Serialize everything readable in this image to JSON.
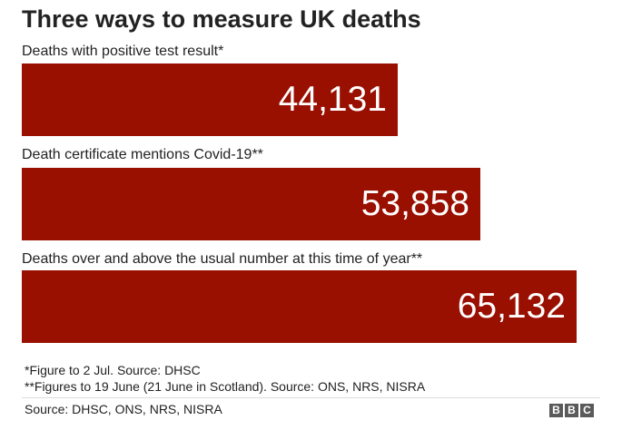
{
  "chart_data": {
    "type": "bar",
    "orientation": "horizontal",
    "title": "Three ways to measure UK deaths",
    "categories": [
      "Deaths with positive test result*",
      "Death certificate mentions Covid-19**",
      "Deaths over and above the usual number at this time of year**"
    ],
    "values": [
      44131,
      53858,
      65132
    ],
    "value_labels": [
      "44,131",
      "53,858",
      "65,132"
    ],
    "bar_color": "#990f00",
    "value_label_color": "#ffffff",
    "grid": false,
    "legend": "none"
  },
  "footnotes": [
    "*Figure to 2 Jul. Source: DHSC",
    "**Figures to 19 June (21 June in Scotland). Source: ONS, NRS, NISRA"
  ],
  "source": "Source: DHSC, ONS, NRS, NISRA",
  "logo": {
    "name": "bbc-logo",
    "letters": [
      "B",
      "B",
      "C"
    ],
    "color": "#5a5a5a"
  }
}
